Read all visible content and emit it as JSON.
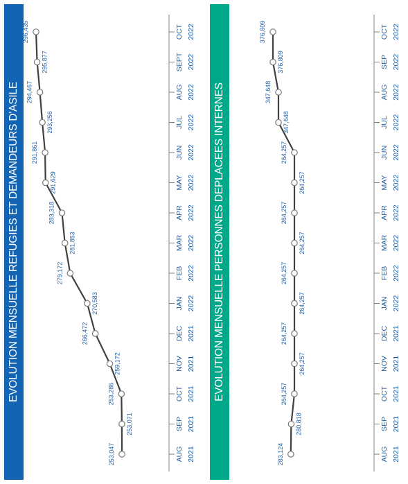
{
  "chart_data": [
    {
      "type": "line",
      "title": "EVOLUTION MENSUELLE REFUGIES ET DEMANDEURS D'ASILE",
      "categories": [
        [
          "AUG",
          "2021"
        ],
        [
          "SEP",
          "2021"
        ],
        [
          "OCT",
          "2021"
        ],
        [
          "NOV",
          "2021"
        ],
        [
          "DEC",
          "2021"
        ],
        [
          "JAN",
          "2022"
        ],
        [
          "FEB",
          "2022"
        ],
        [
          "MAR",
          "2022"
        ],
        [
          "APR",
          "2022"
        ],
        [
          "MAY",
          "2022"
        ],
        [
          "JUN",
          "2022"
        ],
        [
          "JUL",
          "2022"
        ],
        [
          "AUG",
          "2022"
        ],
        [
          "SEPT",
          "2022"
        ],
        [
          "OCT",
          "2022"
        ]
      ],
      "values": [
        253047,
        253071,
        253286,
        259172,
        266472,
        270583,
        279172,
        281853,
        283318,
        291629,
        291861,
        293256,
        294467,
        295877,
        296435
      ],
      "labels": [
        "253,047",
        "253,071",
        "253,286",
        "259,172",
        "266,472",
        "270,583",
        "279,172",
        "281,853",
        "283,318",
        "291,629",
        "291,861",
        "293,256",
        "294,467",
        "295,877",
        "296,435"
      ],
      "line_color": "#404040",
      "banner_color": "#1464b4"
    },
    {
      "type": "line",
      "title": "EVOLUTION MENSUELLE PERSONNES DEPLACEES INTERNES",
      "categories": [
        [
          "AUG",
          "2021"
        ],
        [
          "SEP",
          "2021"
        ],
        [
          "OCT",
          "2021"
        ],
        [
          "NOV",
          "2021"
        ],
        [
          "DEC",
          "2021"
        ],
        [
          "JAN",
          "2022"
        ],
        [
          "FEB",
          "2022"
        ],
        [
          "MAR",
          "2022"
        ],
        [
          "APR",
          "2022"
        ],
        [
          "MAY",
          "2022"
        ],
        [
          "JUN",
          "2022"
        ],
        [
          "JUL",
          "2022"
        ],
        [
          "AUG",
          "2022"
        ],
        [
          "SEP",
          "2022"
        ],
        [
          "OCT",
          "2022"
        ]
      ],
      "values": [
        283124,
        280818,
        264257,
        264257,
        264257,
        264257,
        264257,
        264257,
        264257,
        264257,
        264257,
        347648,
        347648,
        376809,
        376809
      ],
      "labels": [
        "283,124",
        "280,818",
        "264,257",
        "264,257",
        "264,257",
        "264,257",
        "264,257",
        "264,257",
        "264,257",
        "264,257",
        "264,257",
        "347,648",
        "347,648",
        "376,809",
        "376,809"
      ],
      "line_color": "#404040",
      "banner_color": "#00a98a"
    }
  ]
}
